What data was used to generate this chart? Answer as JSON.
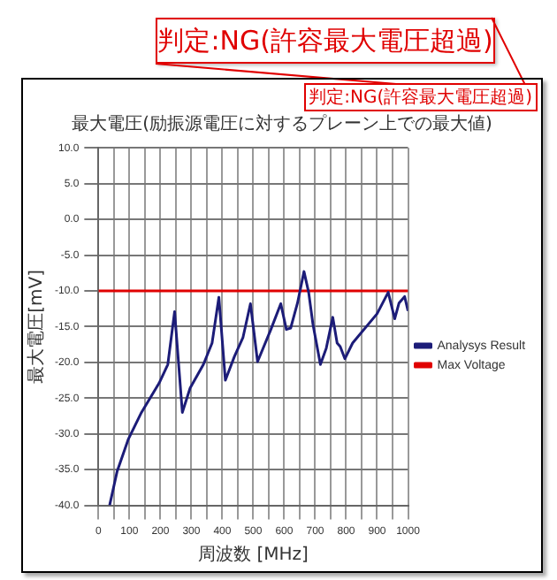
{
  "chart_data": {
    "type": "line",
    "title": "最大電圧(励振源電圧に対するプレーン上での最大値)",
    "xlabel": "周波数 [MHz]",
    "ylabel": "最大電圧[mV]",
    "annotations": [
      "判定:NG(許容最大電圧超過)",
      "判定:NG(許容最大電圧超過)"
    ],
    "series": [
      {
        "name": "Analysys Result",
        "color": "#1c1c78",
        "x": [
          36,
          60,
          96,
          139,
          196,
          224,
          246,
          271,
          296,
          339,
          367,
          389,
          410,
          439,
          467,
          491,
          514,
          557,
          589,
          607,
          621,
          643,
          664,
          679,
          693,
          717,
          736,
          757,
          771,
          781,
          796,
          821,
          900,
          936,
          957,
          971,
          989,
          1000
        ],
        "values": [
          -40,
          -35.3,
          -30.8,
          -27,
          -22.9,
          -20.3,
          -12.9,
          -27,
          -23.6,
          -20.3,
          -17.3,
          -10.9,
          -22.5,
          -19.2,
          -16.5,
          -11.8,
          -19.9,
          -15.4,
          -11.8,
          -15.4,
          -15.2,
          -11.7,
          -7.3,
          -10.2,
          -14.7,
          -20.3,
          -18,
          -13.7,
          -17.3,
          -17.8,
          -19.5,
          -17.3,
          -13.2,
          -10.2,
          -13.9,
          -11.7,
          -10.8,
          -12.8
        ]
      },
      {
        "name": "Max Voltage",
        "color": "#e00000",
        "x": [
          0,
          1000
        ],
        "values": [
          -10,
          -10
        ]
      }
    ],
    "xlim": [
      0,
      1000
    ],
    "xticks": [
      0,
      {
        "value": 50,
        "label": null
      },
      100,
      {
        "value": 150,
        "label": null
      },
      200,
      {
        "value": 250,
        "label": null
      },
      300,
      {
        "value": 350,
        "label": null
      },
      400,
      {
        "value": 450,
        "label": null
      },
      500,
      {
        "value": 550,
        "label": null
      },
      600,
      {
        "value": 650,
        "label": null
      },
      700,
      {
        "value": 750,
        "label": null
      },
      800,
      {
        "value": 850,
        "label": null
      },
      900,
      {
        "value": 950,
        "label": null
      },
      1000
    ],
    "ylim": [
      -40,
      10
    ],
    "yticks": [
      {
        "value": -40,
        "label": "-40.0"
      },
      {
        "value": -35,
        "label": "-35.0"
      },
      {
        "value": -30,
        "label": "-30.0"
      },
      {
        "value": -25,
        "label": "-25.0"
      },
      {
        "value": -20,
        "label": "-20.0"
      },
      {
        "value": -15,
        "label": "-15.0"
      },
      {
        "value": -10,
        "label": "-10.0"
      },
      {
        "value": -5,
        "label": "-5.0"
      },
      {
        "value": 0,
        "label": "0.0"
      },
      {
        "value": 5,
        "label": "5.0"
      },
      {
        "value": 10,
        "label": "10.0"
      }
    ],
    "grid": true,
    "legend": "right",
    "marker": "none",
    "line_style": "solid"
  }
}
